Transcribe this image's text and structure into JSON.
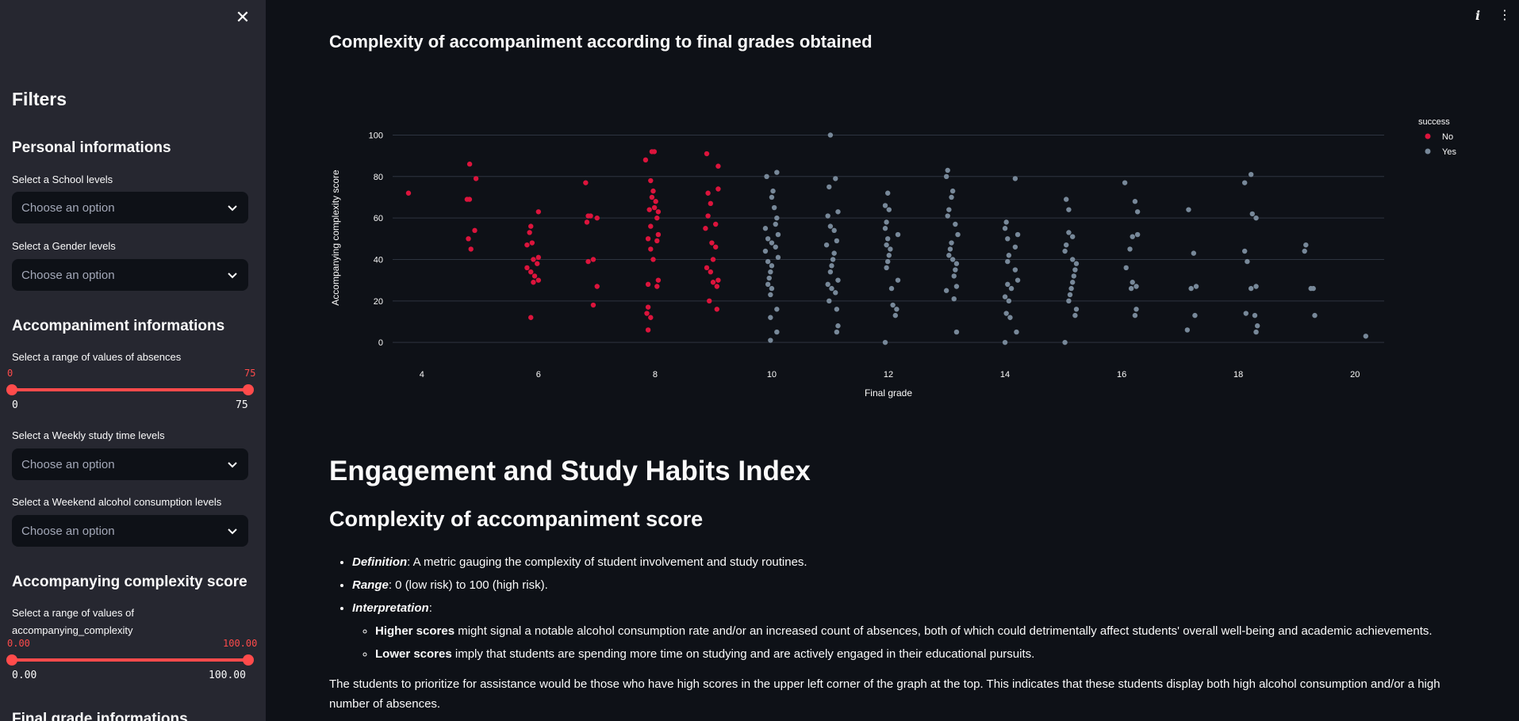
{
  "sidebar": {
    "close_icon": "close-icon",
    "title": "Filters",
    "personal_header": "Personal informations",
    "school_label": "Select a School levels",
    "school_placeholder": "Choose an option",
    "gender_label": "Select a Gender levels",
    "gender_placeholder": "Choose an option",
    "accompaniment_header": "Accompaniment informations",
    "absences_label": "Select a range of values of absences",
    "absences_low": "0",
    "absences_high": "75",
    "absences_min": "0",
    "absences_max": "75",
    "study_label": "Select a Weekly study time levels",
    "study_placeholder": "Choose an option",
    "alcohol_label": "Select a Weekend alcohol consumption levels",
    "alcohol_placeholder": "Choose an option",
    "complexity_header": "Accompanying complexity score",
    "complexity_label_1": "Select a range of values of",
    "complexity_label_2": "accompanying_complexity",
    "complexity_low": "0.00",
    "complexity_high": "100.00",
    "complexity_min": "0.00",
    "complexity_max": "100.00",
    "final_header": "Final grade informations"
  },
  "topbar": {
    "info_icon": "info-icon",
    "menu_icon": "kebab-menu-icon"
  },
  "main": {
    "chart_title": "Complexity of accompaniment according to final grades obtained",
    "h1": "Engagement and Study Habits Index",
    "h2": "Complexity of accompaniment score",
    "def_term": "Definition",
    "def_text": ": A metric gauging the complexity of student involvement and study routines.",
    "range_term": "Range",
    "range_text": ": 0 (low risk) to 100 (high risk).",
    "interp_term": "Interpretation",
    "interp_text": ":",
    "higher_term": "Higher scores",
    "higher_text": " might signal a notable alcohol consumption rate and/or an increased count of absences, both of which could detrimentally affect students' overall well-being and academic achievements.",
    "lower_term": "Lower scores",
    "lower_text": " imply that students are spending more time on studying and are actively engaged in their educational pursuits.",
    "paragraph": "The students to prioritize for assistance would be those who have high scores in the upper left corner of the graph at the top. This indicates that these students display both high alcohol consumption and/or a high number of absences."
  },
  "colors": {
    "accent": "#ff4b4b",
    "no": "#dc143c",
    "yes": "#778899"
  },
  "chart_data": {
    "type": "scatter",
    "title": "",
    "xlabel": "Final grade",
    "ylabel": "Accompanying complexity score",
    "xlim": [
      3.5,
      20.5
    ],
    "ylim": [
      -3,
      104
    ],
    "xticks": [
      4,
      6,
      8,
      10,
      12,
      14,
      16,
      18,
      20
    ],
    "yticks": [
      0,
      20,
      40,
      60,
      80,
      100
    ],
    "grid": true,
    "legend_title": "success",
    "legend_position": "top-right",
    "series": [
      {
        "name": "No",
        "color": "#dc143c",
        "points": [
          [
            4,
            72
          ],
          [
            5,
            86
          ],
          [
            5,
            79
          ],
          [
            5,
            69
          ],
          [
            5,
            69
          ],
          [
            5,
            54
          ],
          [
            5,
            50
          ],
          [
            5,
            45
          ],
          [
            6,
            63
          ],
          [
            6,
            56
          ],
          [
            6,
            53
          ],
          [
            6,
            48
          ],
          [
            6,
            47
          ],
          [
            6,
            41
          ],
          [
            6,
            40
          ],
          [
            6,
            38
          ],
          [
            6,
            36
          ],
          [
            6,
            34
          ],
          [
            6,
            32
          ],
          [
            6,
            30
          ],
          [
            6,
            29
          ],
          [
            6,
            12
          ],
          [
            7,
            77
          ],
          [
            7,
            61
          ],
          [
            7,
            61
          ],
          [
            7,
            60
          ],
          [
            7,
            58
          ],
          [
            7,
            40
          ],
          [
            7,
            39
          ],
          [
            7,
            27
          ],
          [
            7,
            18
          ],
          [
            8,
            92
          ],
          [
            8,
            92
          ],
          [
            8,
            88
          ],
          [
            8,
            78
          ],
          [
            8,
            73
          ],
          [
            8,
            70
          ],
          [
            8,
            68
          ],
          [
            8,
            65
          ],
          [
            8,
            64
          ],
          [
            8,
            63
          ],
          [
            8,
            60
          ],
          [
            8,
            56
          ],
          [
            8,
            52
          ],
          [
            8,
            50
          ],
          [
            8,
            49
          ],
          [
            8,
            45
          ],
          [
            8,
            40
          ],
          [
            8,
            30
          ],
          [
            8,
            28
          ],
          [
            8,
            27
          ],
          [
            8,
            17
          ],
          [
            8,
            14
          ],
          [
            8,
            12
          ],
          [
            8,
            6
          ],
          [
            9,
            91
          ],
          [
            9,
            85
          ],
          [
            9,
            74
          ],
          [
            9,
            72
          ],
          [
            9,
            67
          ],
          [
            9,
            61
          ],
          [
            9,
            57
          ],
          [
            9,
            55
          ],
          [
            9,
            48
          ],
          [
            9,
            46
          ],
          [
            9,
            40
          ],
          [
            9,
            36
          ],
          [
            9,
            34
          ],
          [
            9,
            30
          ],
          [
            9,
            29
          ],
          [
            9,
            27
          ],
          [
            9,
            20
          ],
          [
            9,
            16
          ]
        ]
      },
      {
        "name": "Yes",
        "color": "#778899",
        "points": [
          [
            10,
            82
          ],
          [
            10,
            80
          ],
          [
            10,
            73
          ],
          [
            10,
            70
          ],
          [
            10,
            65
          ],
          [
            10,
            60
          ],
          [
            10,
            57
          ],
          [
            10,
            55
          ],
          [
            10,
            52
          ],
          [
            10,
            50
          ],
          [
            10,
            48
          ],
          [
            10,
            46
          ],
          [
            10,
            44
          ],
          [
            10,
            41
          ],
          [
            10,
            39
          ],
          [
            10,
            37
          ],
          [
            10,
            34
          ],
          [
            10,
            31
          ],
          [
            10,
            28
          ],
          [
            10,
            26
          ],
          [
            10,
            23
          ],
          [
            10,
            16
          ],
          [
            10,
            12
          ],
          [
            10,
            5
          ],
          [
            10,
            1
          ],
          [
            11,
            100
          ],
          [
            11,
            79
          ],
          [
            11,
            75
          ],
          [
            11,
            63
          ],
          [
            11,
            61
          ],
          [
            11,
            56
          ],
          [
            11,
            54
          ],
          [
            11,
            49
          ],
          [
            11,
            47
          ],
          [
            11,
            43
          ],
          [
            11,
            40
          ],
          [
            11,
            37
          ],
          [
            11,
            34
          ],
          [
            11,
            30
          ],
          [
            11,
            28
          ],
          [
            11,
            26
          ],
          [
            11,
            24
          ],
          [
            11,
            20
          ],
          [
            11,
            16
          ],
          [
            11,
            8
          ],
          [
            11,
            5
          ],
          [
            12,
            72
          ],
          [
            12,
            66
          ],
          [
            12,
            64
          ],
          [
            12,
            58
          ],
          [
            12,
            55
          ],
          [
            12,
            52
          ],
          [
            12,
            50
          ],
          [
            12,
            47
          ],
          [
            12,
            45
          ],
          [
            12,
            42
          ],
          [
            12,
            39
          ],
          [
            12,
            36
          ],
          [
            12,
            30
          ],
          [
            12,
            26
          ],
          [
            12,
            18
          ],
          [
            12,
            16
          ],
          [
            12,
            13
          ],
          [
            12,
            0
          ],
          [
            13,
            83
          ],
          [
            13,
            80
          ],
          [
            13,
            73
          ],
          [
            13,
            70
          ],
          [
            13,
            64
          ],
          [
            13,
            61
          ],
          [
            13,
            57
          ],
          [
            13,
            52
          ],
          [
            13,
            48
          ],
          [
            13,
            45
          ],
          [
            13,
            42
          ],
          [
            13,
            40
          ],
          [
            13,
            38
          ],
          [
            13,
            35
          ],
          [
            13,
            32
          ],
          [
            13,
            27
          ],
          [
            13,
            25
          ],
          [
            13,
            21
          ],
          [
            13,
            5
          ],
          [
            14,
            79
          ],
          [
            14,
            58
          ],
          [
            14,
            55
          ],
          [
            14,
            52
          ],
          [
            14,
            50
          ],
          [
            14,
            46
          ],
          [
            14,
            42
          ],
          [
            14,
            39
          ],
          [
            14,
            35
          ],
          [
            14,
            30
          ],
          [
            14,
            28
          ],
          [
            14,
            26
          ],
          [
            14,
            22
          ],
          [
            14,
            20
          ],
          [
            14,
            14
          ],
          [
            14,
            12
          ],
          [
            14,
            5
          ],
          [
            14,
            0
          ],
          [
            15,
            69
          ],
          [
            15,
            64
          ],
          [
            15,
            53
          ],
          [
            15,
            51
          ],
          [
            15,
            47
          ],
          [
            15,
            44
          ],
          [
            15,
            40
          ],
          [
            15,
            38
          ],
          [
            15,
            35
          ],
          [
            15,
            32
          ],
          [
            15,
            29
          ],
          [
            15,
            26
          ],
          [
            15,
            23
          ],
          [
            15,
            20
          ],
          [
            15,
            16
          ],
          [
            15,
            13
          ],
          [
            15,
            0
          ],
          [
            16,
            77
          ],
          [
            16,
            68
          ],
          [
            16,
            63
          ],
          [
            16,
            52
          ],
          [
            16,
            51
          ],
          [
            16,
            45
          ],
          [
            16,
            36
          ],
          [
            16,
            29
          ],
          [
            16,
            27
          ],
          [
            16,
            26
          ],
          [
            16,
            16
          ],
          [
            16,
            13
          ],
          [
            17,
            64
          ],
          [
            17,
            43
          ],
          [
            17,
            27
          ],
          [
            17,
            26
          ],
          [
            17,
            13
          ],
          [
            17,
            6
          ],
          [
            18,
            81
          ],
          [
            18,
            77
          ],
          [
            18,
            62
          ],
          [
            18,
            60
          ],
          [
            18,
            44
          ],
          [
            18,
            39
          ],
          [
            18,
            27
          ],
          [
            18,
            26
          ],
          [
            18,
            14
          ],
          [
            18,
            13
          ],
          [
            18,
            8
          ],
          [
            18,
            5
          ],
          [
            19,
            47
          ],
          [
            19,
            44
          ],
          [
            19,
            26
          ],
          [
            19,
            26
          ],
          [
            19,
            13
          ],
          [
            20,
            3
          ]
        ]
      }
    ]
  }
}
